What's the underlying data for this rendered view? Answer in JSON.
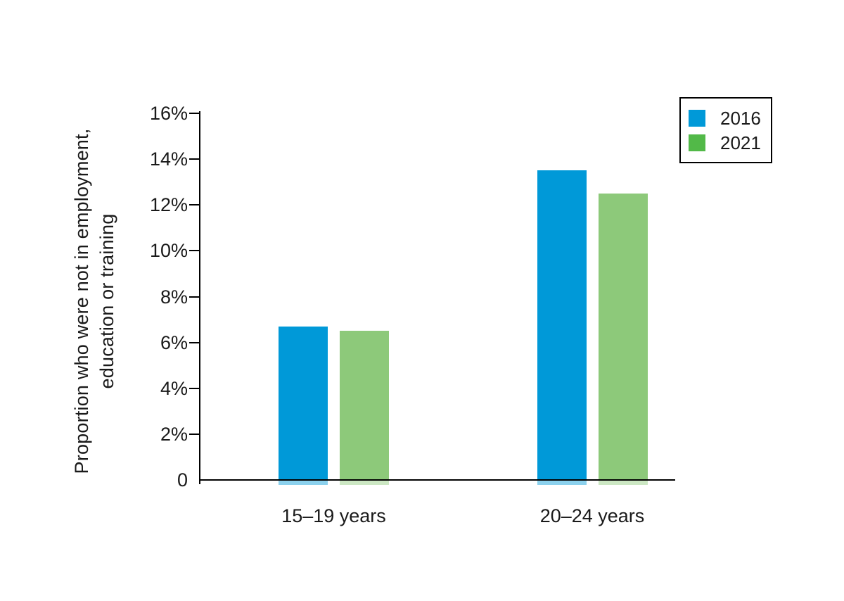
{
  "chart_data": {
    "type": "bar",
    "title": "",
    "ylabel": "Proportion who were not in employment, education or training",
    "ylabel_lines": [
      "Proportion who were not in employment,",
      "education or training"
    ],
    "categories": [
      "15–19 years",
      "20–24 years"
    ],
    "series": [
      {
        "name": "2016",
        "color": "#0099d8",
        "legend_color": "#0099d8",
        "values": [
          6.7,
          13.5
        ]
      },
      {
        "name": "2021",
        "color": "#8dc97a",
        "legend_color": "#52b948",
        "values": [
          6.5,
          12.5
        ]
      }
    ],
    "unit": "%",
    "ylim": [
      0,
      16
    ],
    "yticks": [
      {
        "label": "16%",
        "value": 16
      },
      {
        "label": "14%",
        "value": 14
      },
      {
        "label": "12%",
        "value": 12
      },
      {
        "label": "10%",
        "value": 10
      },
      {
        "label": "8%",
        "value": 8
      },
      {
        "label": "6%",
        "value": 6
      },
      {
        "label": "4%",
        "value": 4
      },
      {
        "label": "2%",
        "value": 2
      },
      {
        "label": "0",
        "value": 0
      }
    ],
    "grid": false,
    "legend_position": "top-right"
  },
  "legend": {
    "items": [
      {
        "label": "2016",
        "color": "#0099d8"
      },
      {
        "label": "2021",
        "color": "#52b948"
      }
    ]
  }
}
